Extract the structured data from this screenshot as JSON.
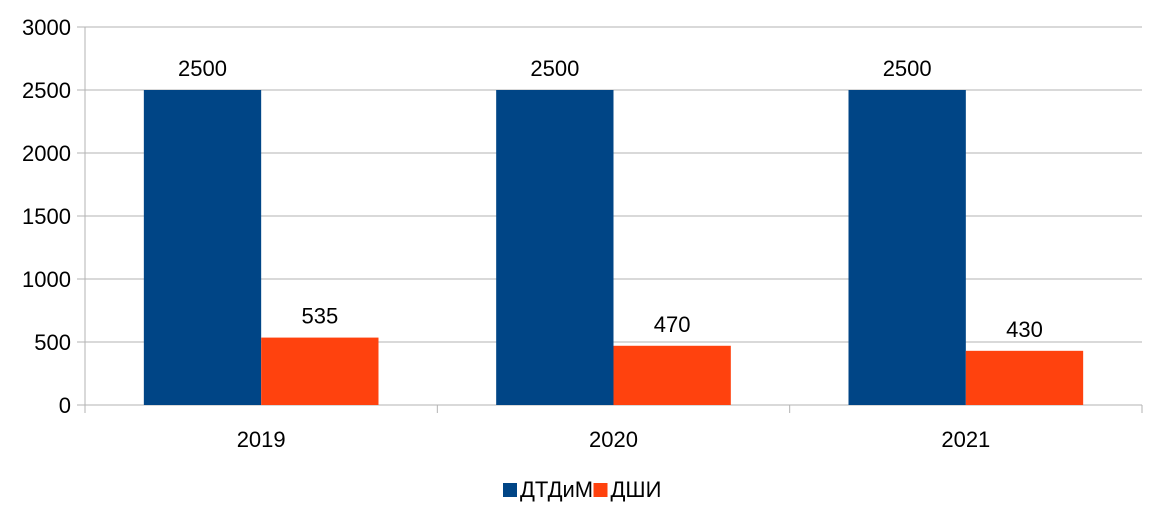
{
  "chart_data": {
    "type": "bar",
    "categories": [
      "2019",
      "2020",
      "2021"
    ],
    "series": [
      {
        "name": "ДТДиМ",
        "values": [
          2500,
          2500,
          2500
        ],
        "color": "#004586"
      },
      {
        "name": "ДШИ",
        "values": [
          535,
          470,
          430
        ],
        "color": "#ff420e"
      }
    ],
    "data_labels": [
      [
        "2500",
        "2500",
        "2500"
      ],
      [
        "535",
        "470",
        "430"
      ]
    ],
    "ylim": [
      0,
      3000
    ],
    "yticks": [
      0,
      500,
      1000,
      1500,
      2000,
      2500,
      3000
    ],
    "ytick_labels": [
      "0",
      "500",
      "1000",
      "1500",
      "2000",
      "2500",
      "3000"
    ],
    "grid": true,
    "legend_position": "bottom-center",
    "title": "",
    "xlabel": "",
    "ylabel": ""
  }
}
